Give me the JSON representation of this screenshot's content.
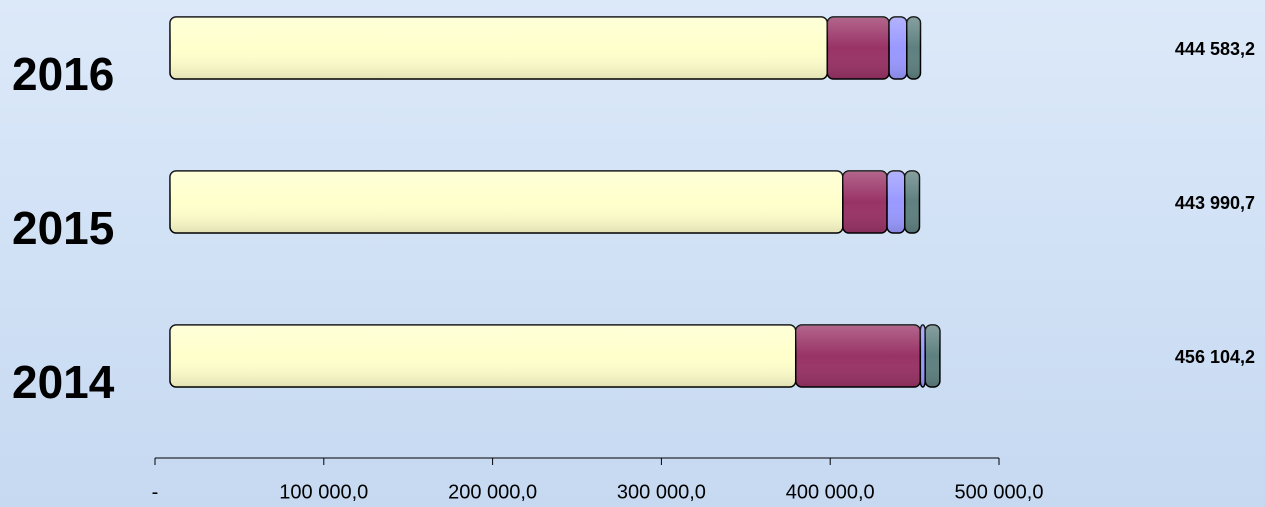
{
  "chart_data": {
    "type": "stacked-bar-horizontal",
    "categories": [
      "2014",
      "2015",
      "2016"
    ],
    "series": [
      {
        "color": "#ffffcc",
        "values": [
          370700,
          398600,
          389400
        ]
      },
      {
        "color": "#993366",
        "values": [
          73800,
          26200,
          36600
        ]
      },
      {
        "color": "#9999ff",
        "values": [
          2900,
          10500,
          10500
        ]
      },
      {
        "color": "#5f8080",
        "values": [
          8700,
          8700,
          8100
        ]
      }
    ],
    "totals": {
      "values": [
        456104.2,
        443990.7,
        444583.2
      ],
      "value_labels": [
        "456 104,2",
        "443 990,7",
        "444 583,2"
      ]
    },
    "xlim": [
      0,
      500000
    ],
    "xticks": [
      {
        "value": 0,
        "label": "-"
      },
      {
        "value": 100000,
        "label": "100 000,0"
      },
      {
        "value": 200000,
        "label": "200 000,0"
      },
      {
        "value": 300000,
        "label": "300 000,0"
      },
      {
        "value": 400000,
        "label": "400 000,0"
      },
      {
        "value": 500000,
        "label": "500 000,0"
      }
    ]
  }
}
